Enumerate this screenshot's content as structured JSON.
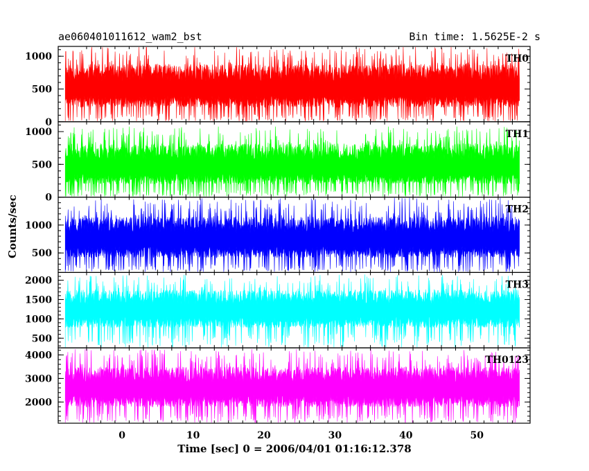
{
  "header": {
    "object": "ae060401011612_wam2_bst",
    "bin_time": "Bin time: 1.5625E-2 s"
  },
  "chart_data": {
    "type": "line",
    "xlabel": "Time [sec] 0 = 2006/04/01 01:16:12.378",
    "ylabel": "Counts/sec",
    "xlim": [
      -9,
      57.5
    ],
    "data_range": [
      -8,
      56
    ],
    "x_ticks": [
      0,
      10,
      20,
      30,
      40,
      50
    ],
    "grid": false,
    "panels": [
      {
        "name": "TH0",
        "color": "#ff0000",
        "ylim": [
          0,
          1150
        ],
        "y_ticks": [
          0,
          500,
          1000
        ],
        "y_tick_labels": [
          "0",
          "500",
          "1000"
        ],
        "base": 400,
        "low": 120,
        "upper": 880,
        "spike_top": 1150,
        "seed": 11
      },
      {
        "name": "TH1",
        "color": "#00ff00",
        "ylim": [
          0,
          1150
        ],
        "y_ticks": [
          0,
          500,
          1000
        ],
        "y_tick_labels": [
          "0",
          "500",
          "1000"
        ],
        "base": 360,
        "low": 110,
        "upper": 820,
        "spike_top": 1080,
        "seed": 23
      },
      {
        "name": "TH2",
        "color": "#0000ff",
        "ylim": [
          150,
          1500
        ],
        "y_ticks": [
          500,
          1000
        ],
        "y_tick_labels": [
          "500",
          "1000"
        ],
        "base": 620,
        "low": 300,
        "upper": 1150,
        "spike_top": 1500,
        "seed": 37
      },
      {
        "name": "TH3",
        "color": "#00ffff",
        "ylim": [
          250,
          2200
        ],
        "y_ticks": [
          500,
          1000,
          1500,
          2000
        ],
        "y_tick_labels": [
          "500",
          "1000",
          "1500",
          "2000"
        ],
        "base": 1050,
        "low": 620,
        "upper": 1750,
        "spike_top": 2150,
        "seed": 51
      },
      {
        "name": "TH0123",
        "color": "#ff00ff",
        "ylim": [
          1100,
          4300
        ],
        "y_ticks": [
          2000,
          3000,
          4000
        ],
        "y_tick_labels": [
          "2000",
          "3000",
          "4000"
        ],
        "base": 2300,
        "low": 1500,
        "upper": 3500,
        "spike_top": 4250,
        "seed": 67
      }
    ]
  }
}
